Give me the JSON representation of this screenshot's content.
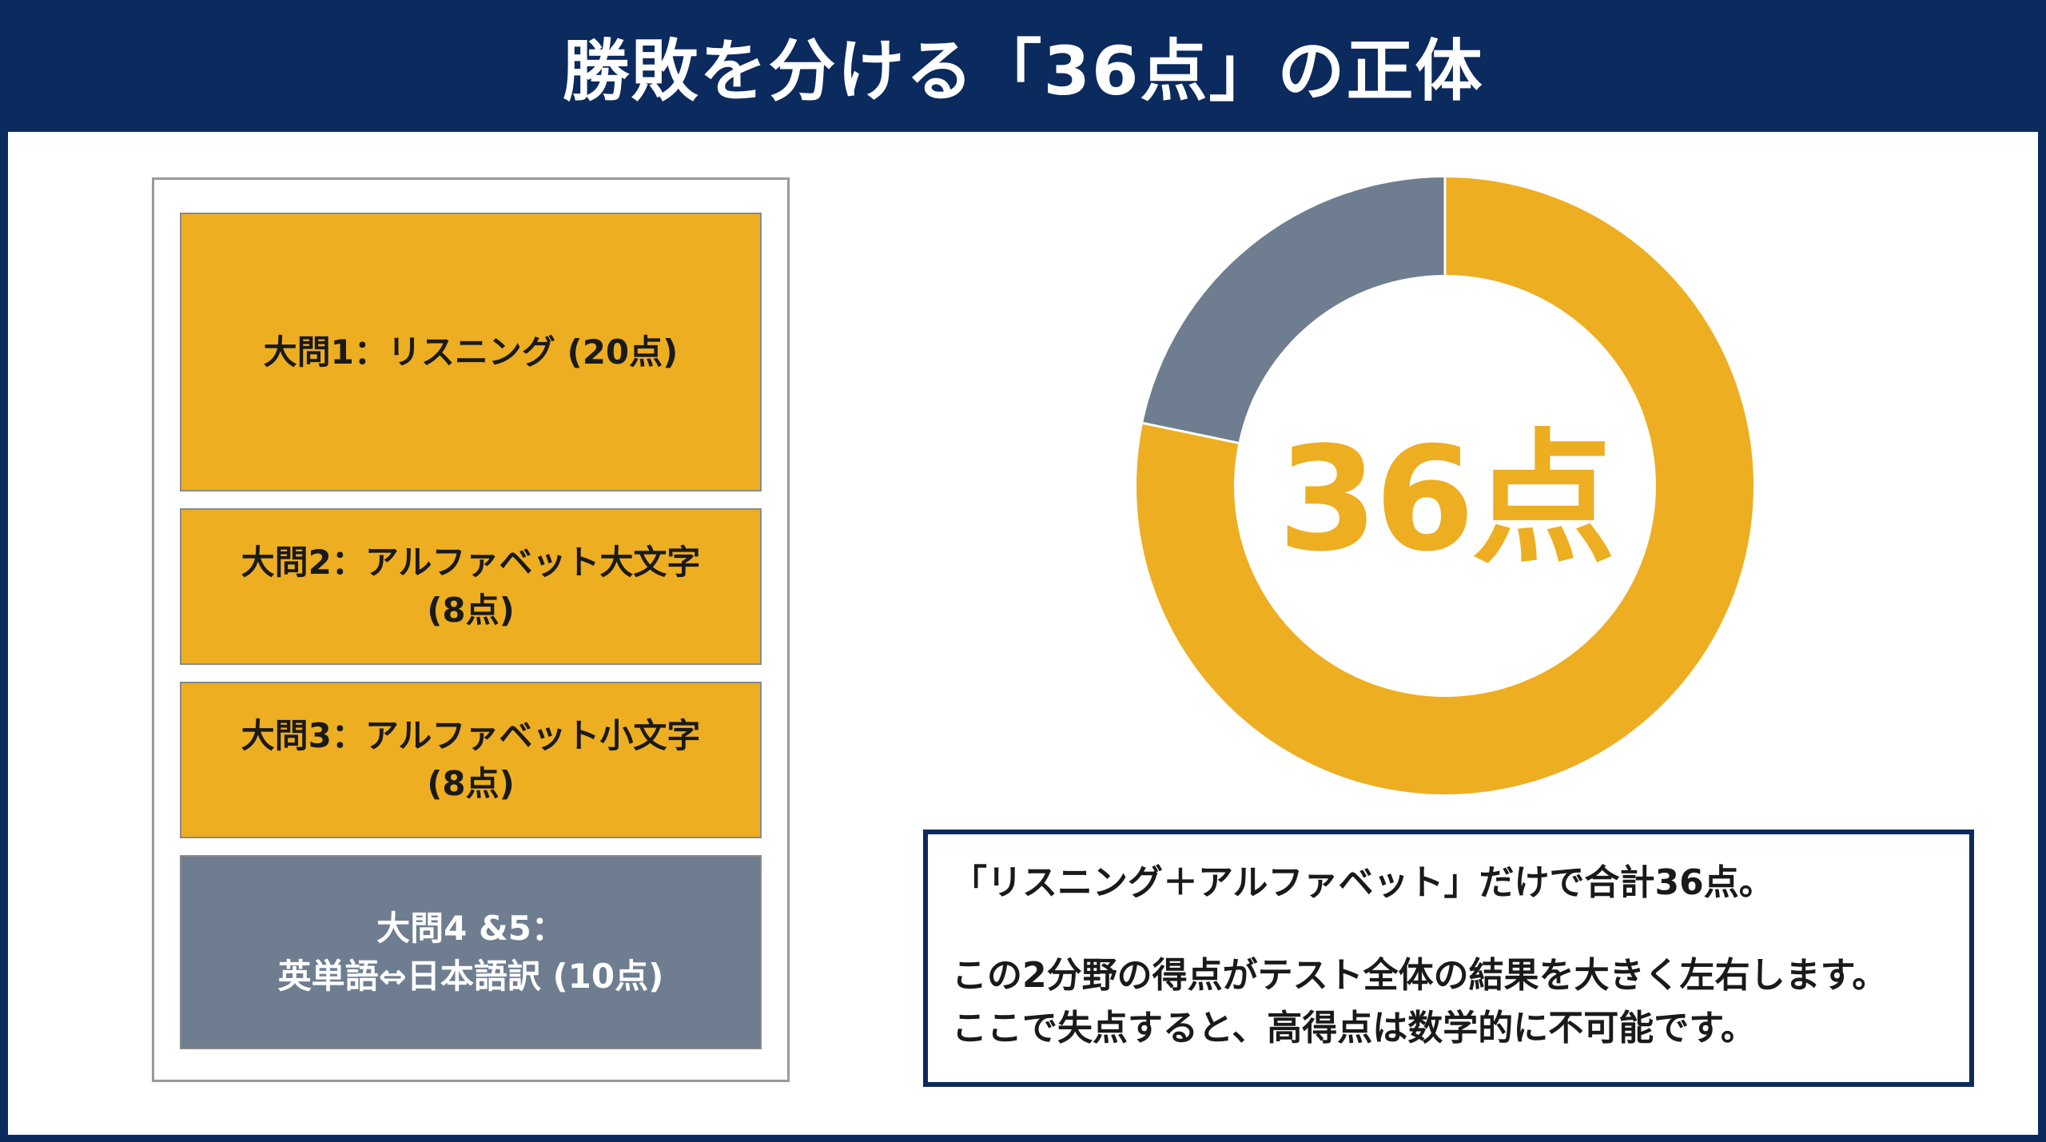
{
  "title": "勝敗を分ける「36点」の正体",
  "sections": [
    {
      "lines": [
        "大問1：リスニング (20点)"
      ],
      "points": 20,
      "color": "#edae22",
      "text_color": "#1a1a1a"
    },
    {
      "lines": [
        "大問2：アルファベット大文字",
        "(8点)"
      ],
      "points": 8,
      "color": "#edae22",
      "text_color": "#1a1a1a"
    },
    {
      "lines": [
        "大問3：アルファベット小文字",
        "(8点)"
      ],
      "points": 8,
      "color": "#edae22",
      "text_color": "#1a1a1a"
    },
    {
      "lines": [
        "大問4 &5：",
        "英単語⇔日本語訳 (10点)"
      ],
      "points": 10,
      "color": "#6e7e90",
      "text_color": "#ffffff"
    }
  ],
  "donut": {
    "center_label": "36点",
    "slices": [
      {
        "value": 36,
        "color": "#edae22"
      },
      {
        "value": 10,
        "color": "#6e7e90"
      }
    ]
  },
  "note": {
    "line1": "「リスニング＋アルファベット」だけで合計36点。",
    "line2": "この2分野の得点がテスト全体の結果を大きく左右します。",
    "line3": "ここで失点すると、高得点は数学的に不可能です。"
  },
  "colors": {
    "navy": "#0b2a5e",
    "gold": "#edae22",
    "slate": "#6e7e90"
  }
}
